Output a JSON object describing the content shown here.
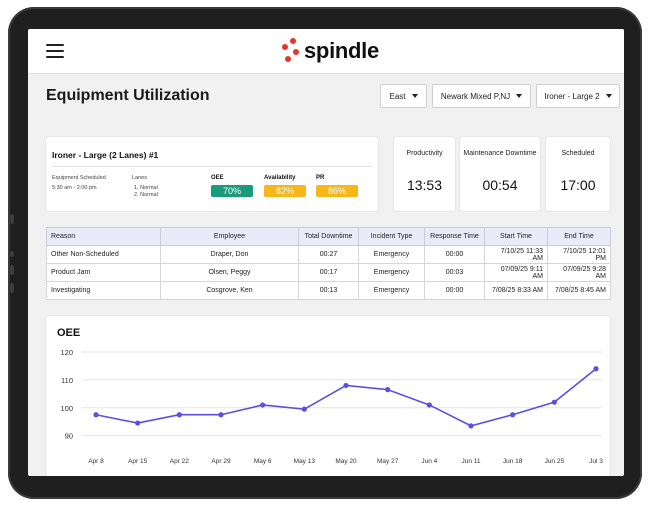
{
  "header": {
    "brand": "spindle"
  },
  "page": {
    "title": "Equipment Utilization"
  },
  "filters": [
    {
      "label": "East"
    },
    {
      "label": "Newark Mixed P,NJ"
    },
    {
      "label": "Ironer - Large 2"
    }
  ],
  "equipment": {
    "title": "Ironer - Large (2 Lanes) #1",
    "scheduled_label": "Equipment Scheduled",
    "scheduled_value": "5:30 am - 2:00 pm",
    "lanes_label": "Lanes",
    "lanes": [
      "1. Normal",
      "2. Normal"
    ],
    "metrics": [
      {
        "label": "OEE",
        "value": "70%",
        "color": "#1a9b7b"
      },
      {
        "label": "Availability",
        "value": "82%",
        "color": "#f5b71c"
      },
      {
        "label": "PR",
        "value": "86%",
        "color": "#f5b71c"
      }
    ]
  },
  "kpis": [
    {
      "label": "Productivity",
      "value": "13:53"
    },
    {
      "label": "Maintenance Downtime",
      "value": "00:54"
    },
    {
      "label": "Scheduled",
      "value": "17:00"
    }
  ],
  "table": {
    "headers": [
      "Reason",
      "Employee",
      "Total Downtime",
      "Incident Type",
      "Response Time",
      "Start Time",
      "End Time"
    ],
    "rows": [
      [
        "Other Non-Scheduled",
        "Draper, Don",
        "00:27",
        "Emergency",
        "00:00",
        "7/10/25 11:33 AM",
        "7/10/25 12:01 PM"
      ],
      [
        "Product Jam",
        "Olsen, Peggy",
        "00:17",
        "Emergency",
        "00:03",
        "07/09/25 9:11 AM",
        "07/09/25 9:28 AM"
      ],
      [
        "Investigating",
        "Cosgrove, Ken",
        "00:13",
        "Emergency",
        "00:00",
        "7/08/25 8:33 AM",
        "7/08/25 8:45 AM"
      ]
    ]
  },
  "chart_data": {
    "type": "line",
    "title": "OEE",
    "categories": [
      "Apr 8",
      "Apr 15",
      "Apr 22",
      "Apr 29",
      "May 6",
      "May 13",
      "May 20",
      "May 27",
      "Jun 4",
      "Jun 11",
      "Jun 18",
      "Jun 25",
      "Jul 3"
    ],
    "series": [
      {
        "values": [
          97.5,
          94.5,
          97.5,
          97.5,
          101,
          99.5,
          108,
          106.5,
          101,
          93.5,
          97.5,
          102,
          114
        ]
      }
    ],
    "yticks": [
      90,
      100,
      110,
      120
    ],
    "ylim": [
      87,
      120
    ],
    "color": "#5b4fe0",
    "grid": true
  }
}
